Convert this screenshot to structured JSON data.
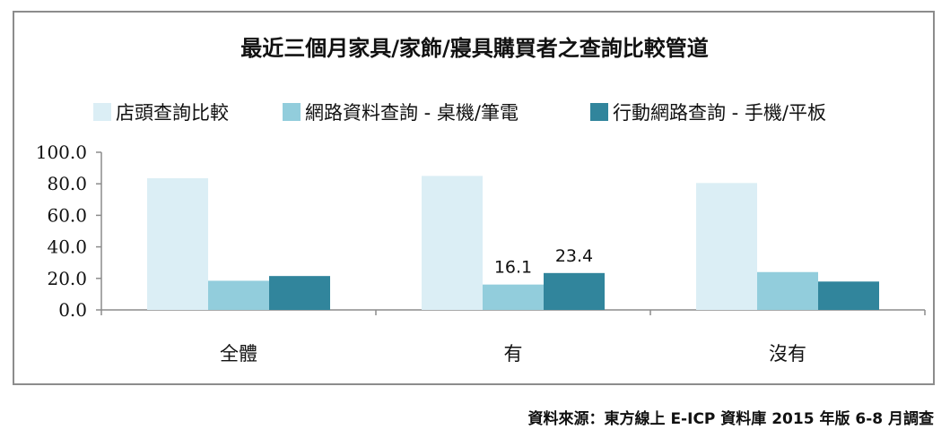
{
  "chart_data": {
    "type": "bar",
    "title": "最近三個月家具/家飾/寢具購買者之查詢比較管道",
    "categories": [
      "全體",
      "有",
      "沒有"
    ],
    "series": [
      {
        "name": "店頭查詢比較",
        "values": [
          83.5,
          85.0,
          80.5
        ],
        "color": "#dbeef5"
      },
      {
        "name": "網路資料查詢 - 桌機/筆電",
        "values": [
          18.5,
          16.1,
          24.0
        ],
        "color": "#92cddc"
      },
      {
        "name": "行動網路查詢 - 手機/平板",
        "values": [
          21.5,
          23.4,
          18.0
        ],
        "color": "#31859c"
      }
    ],
    "data_labels": [
      {
        "category": "有",
        "series": "網路資料查詢 - 桌機/筆電",
        "text": "16.1"
      },
      {
        "category": "有",
        "series": "行動網路查詢 - 手機/平板",
        "text": "23.4"
      }
    ],
    "ylim": [
      0,
      100
    ],
    "yticks": [
      "0.0",
      "20.0",
      "40.0",
      "60.0",
      "80.0",
      "100.0"
    ],
    "xlabel": "",
    "ylabel": "",
    "legend_position": "top",
    "grid": false
  },
  "source": "資料來源：東方線上 E-ICP 資料庫 2015 年版 6-8 月調查"
}
